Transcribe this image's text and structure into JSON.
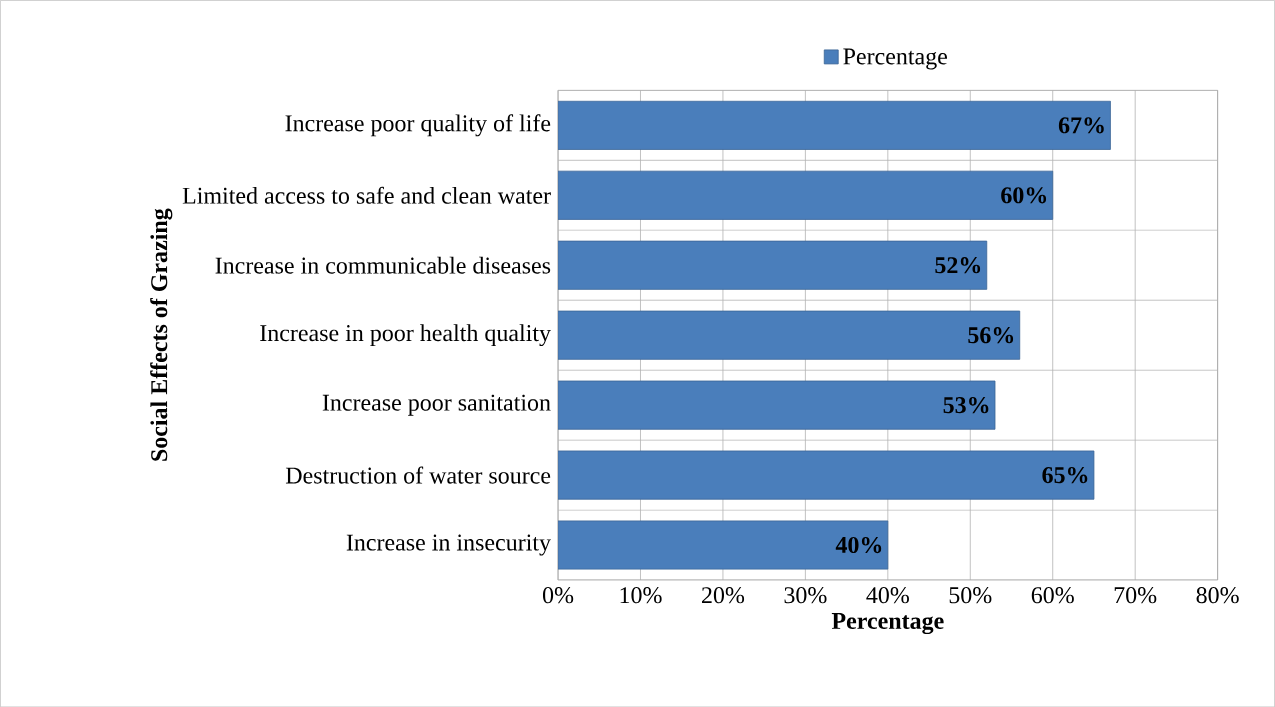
{
  "chart_data": {
    "type": "bar",
    "orientation": "horizontal",
    "ylabel": "Social Effects of Grazing",
    "xlabel": "Percentage",
    "categories": [
      "Increase poor quality of life",
      "Limited access to safe and clean water",
      "Increase in communicable diseases",
      "Increase in poor health quality",
      "Increase poor sanitation",
      "Destruction of water source",
      "Increase in insecurity"
    ],
    "series": [
      {
        "name": "Percentage",
        "color": "#4a7ebb",
        "values": [
          67,
          60,
          52,
          56,
          53,
          65,
          40
        ],
        "value_labels": [
          "67%",
          "60%",
          "52%",
          "56%",
          "53%",
          "65%",
          "40%"
        ]
      }
    ],
    "xlim": [
      0,
      80
    ],
    "xticks": [
      {
        "value": 0,
        "label": "0%"
      },
      {
        "value": 10,
        "label": "10%"
      },
      {
        "value": 20,
        "label": "20%"
      },
      {
        "value": 30,
        "label": "30%"
      },
      {
        "value": 40,
        "label": "40%"
      },
      {
        "value": 50,
        "label": "50%"
      },
      {
        "value": 60,
        "label": "60%"
      },
      {
        "value": 70,
        "label": "70%"
      },
      {
        "value": 80,
        "label": "80%"
      }
    ],
    "grid": true,
    "legend": "top"
  }
}
